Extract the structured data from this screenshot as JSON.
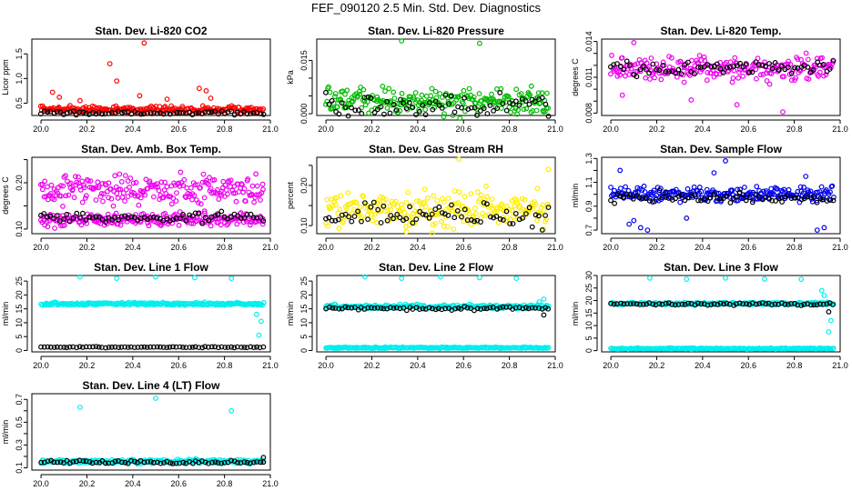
{
  "figure_title": "FEF_090120  2.5 Min. Std. Dev. Diagnostics",
  "chart_data": [
    {
      "type": "scatter",
      "title": "Stan. Dev. Li-820 CO2",
      "ylabel": "Licor ppm",
      "xlim": [
        19.96,
        21.0
      ],
      "xticks": [
        20.0,
        20.2,
        20.4,
        20.6,
        20.8,
        21.0
      ],
      "xtick_labels": [
        "20.0",
        "20.2",
        "20.4",
        "20.6",
        "20.8",
        "21.0"
      ],
      "ylim": [
        0.25,
        1.8
      ],
      "yticks": [
        0.5,
        1.0,
        1.5
      ],
      "ytick_labels": [
        "0.5",
        "1.0",
        "1.5"
      ],
      "series": [
        {
          "name": "main",
          "color": "#ff0000",
          "base": 0.37,
          "spread": 0.06,
          "spikes": [
            [
              20.05,
              0.72
            ],
            [
              20.08,
              0.62
            ],
            [
              20.17,
              0.55
            ],
            [
              20.3,
              1.3
            ],
            [
              20.33,
              0.95
            ],
            [
              20.45,
              1.72
            ],
            [
              20.43,
              0.65
            ],
            [
              20.55,
              0.58
            ],
            [
              20.69,
              0.8
            ],
            [
              20.72,
              0.75
            ],
            [
              20.74,
              0.6
            ]
          ]
        },
        {
          "name": "reference",
          "color": "#000000",
          "base": 0.3,
          "spread": 0.03,
          "spikes": []
        }
      ]
    },
    {
      "type": "scatter",
      "title": "Stan. Dev. Li-820 Pressure",
      "ylabel": "kPa",
      "xlim": [
        19.96,
        21.0
      ],
      "xticks": [
        20.0,
        20.2,
        20.4,
        20.6,
        20.8,
        21.0
      ],
      "xtick_labels": [
        "20.0",
        "20.2",
        "20.4",
        "20.6",
        "20.8",
        "21.0"
      ],
      "ylim": [
        -0.0005,
        0.021
      ],
      "yticks": [
        0.0,
        0.005,
        0.01,
        0.015
      ],
      "ytick_labels": [
        "0.000",
        "",
        "",
        "0.015"
      ],
      "series": [
        {
          "name": "main",
          "color": "#00bb00",
          "base": 0.0035,
          "spread": 0.003,
          "spikes": [
            [
              20.33,
              0.0205
            ],
            [
              20.67,
              0.0198
            ]
          ]
        },
        {
          "name": "reference",
          "color": "#000000",
          "base": 0.002,
          "spread": 0.0025,
          "spikes": []
        }
      ]
    },
    {
      "type": "scatter",
      "title": "Stan. Dev. Li-820 Temp.",
      "ylabel": "degrees C",
      "xlim": [
        19.96,
        21.0
      ],
      "xticks": [
        20.0,
        20.2,
        20.4,
        20.6,
        20.8,
        21.0
      ],
      "xtick_labels": [
        "20.0",
        "20.2",
        "20.4",
        "20.6",
        "20.8",
        "21.0"
      ],
      "ylim": [
        0.0078,
        0.0142
      ],
      "yticks": [
        0.008,
        0.009,
        0.01,
        0.011,
        0.012,
        0.013,
        0.014
      ],
      "ytick_labels": [
        "0.008",
        "",
        "",
        "0.011",
        "",
        "",
        "0.014"
      ],
      "series": [
        {
          "name": "main",
          "color": "#ee00ee",
          "base": 0.0117,
          "spread": 0.0008,
          "spikes": [
            [
              20.05,
              0.0095
            ],
            [
              20.1,
              0.0139
            ],
            [
              20.55,
              0.0087
            ],
            [
              20.75,
              0.0081
            ],
            [
              20.35,
              0.0091
            ]
          ]
        },
        {
          "name": "reference",
          "color": "#000000",
          "base": 0.0118,
          "spread": 0.0005,
          "spikes": []
        }
      ]
    },
    {
      "type": "scatter",
      "title": "Stan. Dev. Amb. Box Temp.",
      "ylabel": "degrees C",
      "xlim": [
        19.96,
        21.0
      ],
      "xticks": [
        20.0,
        20.2,
        20.4,
        20.6,
        20.8,
        21.0
      ],
      "xtick_labels": [
        "20.0",
        "20.2",
        "20.4",
        "20.6",
        "20.8",
        "21.0"
      ],
      "ylim": [
        0.09,
        0.255
      ],
      "yticks": [
        0.1,
        0.15,
        0.2,
        0.25
      ],
      "ytick_labels": [
        "0.10",
        "",
        "0.20",
        ""
      ],
      "series": [
        {
          "name": "upper",
          "color": "#ee00ee",
          "base": 0.185,
          "spread": 0.025,
          "spikes": []
        },
        {
          "name": "lower",
          "color": "#ee00ee",
          "base": 0.12,
          "spread": 0.012,
          "spikes": []
        },
        {
          "name": "reference",
          "color": "#000000",
          "base": 0.125,
          "spread": 0.008,
          "spikes": []
        }
      ]
    },
    {
      "type": "scatter",
      "title": "Stan. Dev. Gas Stream RH",
      "ylabel": "percent",
      "xlim": [
        19.96,
        21.0
      ],
      "xticks": [
        20.0,
        20.2,
        20.4,
        20.6,
        20.8,
        21.0
      ],
      "xtick_labels": [
        "20.0",
        "20.2",
        "20.4",
        "20.6",
        "20.8",
        "21.0"
      ],
      "ylim": [
        0.08,
        0.27
      ],
      "yticks": [
        0.1,
        0.15,
        0.2,
        0.25
      ],
      "ytick_labels": [
        "0.10",
        "",
        "0.20",
        ""
      ],
      "series": [
        {
          "name": "main",
          "color": "#ffee00",
          "base": 0.14,
          "spread": 0.035,
          "spikes": [
            [
              20.35,
              0.085
            ],
            [
              20.58,
              0.265
            ],
            [
              20.97,
              0.24
            ]
          ]
        },
        {
          "name": "reference",
          "color": "#000000",
          "base": 0.125,
          "spread": 0.025,
          "spikes": []
        }
      ]
    },
    {
      "type": "scatter",
      "title": "Stan. Dev. Sample Flow",
      "ylabel": "ml/min",
      "xlim": [
        19.96,
        21.0
      ],
      "xticks": [
        20.0,
        20.2,
        20.4,
        20.6,
        20.8,
        21.0
      ],
      "xtick_labels": [
        "20.0",
        "20.2",
        "20.4",
        "20.6",
        "20.8",
        "21.0"
      ],
      "ylim": [
        0.67,
        1.31
      ],
      "yticks": [
        0.7,
        0.8,
        0.9,
        1.0,
        1.1,
        1.2,
        1.3
      ],
      "ytick_labels": [
        "0.7",
        "",
        "0.9",
        "",
        "1.1",
        "",
        "1.3"
      ],
      "series": [
        {
          "name": "main",
          "color": "#0000ee",
          "base": 1.0,
          "spread": 0.05,
          "spikes": [
            [
              20.08,
              0.75
            ],
            [
              20.1,
              0.78
            ],
            [
              20.13,
              0.72
            ],
            [
              20.16,
              0.7
            ],
            [
              20.04,
              1.2
            ],
            [
              20.5,
              1.28
            ],
            [
              20.33,
              0.8
            ],
            [
              20.45,
              1.18
            ],
            [
              20.9,
              0.7
            ],
            [
              20.93,
              0.72
            ],
            [
              20.85,
              1.15
            ]
          ]
        },
        {
          "name": "reference",
          "color": "#000000",
          "base": 0.97,
          "spread": 0.04,
          "spikes": []
        }
      ]
    },
    {
      "type": "scatter",
      "title": "Stan. Dev. Line 1 Flow",
      "ylabel": "ml/min",
      "xlim": [
        19.96,
        21.0
      ],
      "xticks": [
        20.0,
        20.2,
        20.4,
        20.6,
        20.8,
        21.0
      ],
      "xtick_labels": [
        "20.0",
        "20.2",
        "20.4",
        "20.6",
        "20.8",
        "21.0"
      ],
      "ylim": [
        -0.5,
        27
      ],
      "yticks": [
        0,
        5,
        10,
        15,
        20,
        25
      ],
      "ytick_labels": [
        "0",
        "5",
        "10",
        "15",
        "20",
        "25"
      ],
      "series": [
        {
          "name": "main",
          "color": "#00eeee",
          "base": 16.8,
          "spread": 0.4,
          "spikes": [
            [
              20.17,
              26.5
            ],
            [
              20.33,
              26.0
            ],
            [
              20.5,
              26.5
            ],
            [
              20.67,
              26.2
            ],
            [
              20.83,
              26.0
            ],
            [
              20.95,
              5.5
            ],
            [
              20.96,
              10.5
            ],
            [
              20.94,
              13.0
            ]
          ]
        },
        {
          "name": "reference",
          "color": "#000000",
          "base": 1.2,
          "spread": 0.15,
          "spikes": []
        }
      ]
    },
    {
      "type": "scatter",
      "title": "Stan. Dev. Line 2 Flow",
      "ylabel": "ml/min",
      "xlim": [
        19.96,
        21.0
      ],
      "xticks": [
        20.0,
        20.2,
        20.4,
        20.6,
        20.8,
        21.0
      ],
      "xtick_labels": [
        "20.0",
        "20.2",
        "20.4",
        "20.6",
        "20.8",
        "21.0"
      ],
      "ylim": [
        -0.5,
        27
      ],
      "yticks": [
        0,
        5,
        10,
        15,
        20,
        25
      ],
      "ytick_labels": [
        "0",
        "5",
        "10",
        "15",
        "20",
        "25"
      ],
      "series": [
        {
          "name": "main",
          "color": "#00eeee",
          "base": 1.0,
          "spread": 0.2,
          "spikes": [
            [
              20.17,
              26.5
            ],
            [
              20.33,
              26.0
            ],
            [
              20.5,
              26.5
            ],
            [
              20.67,
              26.2
            ],
            [
              20.83,
              26.0
            ]
          ]
        },
        {
          "name": "upper",
          "color": "#00eeee",
          "base": 15.8,
          "spread": 0.6,
          "spikes": [
            [
              20.95,
              18.5
            ],
            [
              20.93,
              17.5
            ]
          ]
        },
        {
          "name": "reference",
          "color": "#000000",
          "base": 15.2,
          "spread": 0.5,
          "spikes": [
            [
              20.95,
              12.8
            ]
          ]
        }
      ]
    },
    {
      "type": "scatter",
      "title": "Stan. Dev. Line 3 Flow",
      "ylabel": "ml/min",
      "xlim": [
        19.96,
        21.0
      ],
      "xticks": [
        20.0,
        20.2,
        20.4,
        20.6,
        20.8,
        21.0
      ],
      "xtick_labels": [
        "20.0",
        "20.2",
        "20.4",
        "20.6",
        "20.8",
        "21.0"
      ],
      "ylim": [
        -0.5,
        30
      ],
      "yticks": [
        0,
        5,
        10,
        15,
        20,
        25,
        30
      ],
      "ytick_labels": [
        "0",
        "5",
        "10",
        "15",
        "20",
        "25",
        "30"
      ],
      "series": [
        {
          "name": "main",
          "color": "#00eeee",
          "base": 0.8,
          "spread": 0.2,
          "spikes": [
            [
              20.17,
              29.0
            ],
            [
              20.33,
              28.5
            ],
            [
              20.5,
              29.0
            ],
            [
              20.67,
              28.6
            ],
            [
              20.83,
              28.5
            ],
            [
              20.92,
              24.0
            ],
            [
              20.93,
              22.0
            ],
            [
              20.95,
              7.5
            ],
            [
              20.96,
              12.0
            ]
          ]
        },
        {
          "name": "upper",
          "color": "#00eeee",
          "base": 18.8,
          "spread": 0.4,
          "spikes": []
        },
        {
          "name": "reference",
          "color": "#000000",
          "base": 18.6,
          "spread": 0.4,
          "spikes": [
            [
              20.95,
              15.5
            ]
          ]
        }
      ]
    },
    {
      "type": "scatter",
      "title": "Stan. Dev. Line 4 (LT) Flow",
      "ylabel": "ml/min",
      "xlim": [
        19.96,
        21.0
      ],
      "xticks": [
        20.0,
        20.2,
        20.4,
        20.6,
        20.8,
        21.0
      ],
      "xtick_labels": [
        "20.0",
        "20.2",
        "20.4",
        "20.6",
        "20.8",
        "21.0"
      ],
      "ylim": [
        0.08,
        0.75
      ],
      "yticks": [
        0.1,
        0.2,
        0.3,
        0.4,
        0.5,
        0.6,
        0.7
      ],
      "ytick_labels": [
        "0.1",
        "",
        "0.3",
        "",
        "0.5",
        "",
        "0.7"
      ],
      "series": [
        {
          "name": "main",
          "color": "#00eeee",
          "base": 0.155,
          "spread": 0.015,
          "spikes": [
            [
              20.17,
              0.63
            ],
            [
              20.5,
              0.71
            ],
            [
              20.83,
              0.6
            ]
          ]
        },
        {
          "name": "reference",
          "color": "#000000",
          "base": 0.15,
          "spread": 0.012,
          "spikes": [
            [
              20.97,
              0.19
            ]
          ]
        }
      ]
    }
  ]
}
